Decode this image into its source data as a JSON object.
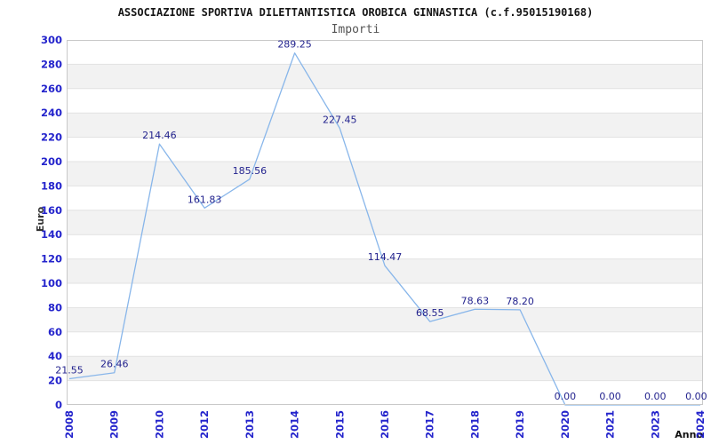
{
  "chart_data": {
    "type": "line",
    "title": "ASSOCIAZIONE SPORTIVA DILETTANTISTICA OROBICA GINNASTICA (c.f.95015190168)",
    "subtitle": "Importi",
    "xlabel": "Anno",
    "ylabel": "Euro",
    "categories": [
      "2008",
      "2009",
      "2010",
      "2012",
      "2013",
      "2014",
      "2015",
      "2016",
      "2017",
      "2018",
      "2019",
      "2020",
      "2021",
      "2023",
      "2024"
    ],
    "series": [
      {
        "name": "Importi",
        "values": [
          21.55,
          26.46,
          214.46,
          161.83,
          185.56,
          289.25,
          227.45,
          114.47,
          68.55,
          78.63,
          78.2,
          0.0,
          0.0,
          0.0,
          0.0
        ],
        "point_labels": [
          "21.55",
          "26.46",
          "214.46",
          "161.83",
          "185.56",
          "289.25",
          "227.45",
          "114.47",
          "68.55",
          "78.63",
          "78.20",
          "0.00",
          "0.00",
          "0.00",
          "0.00"
        ]
      }
    ],
    "ylim": [
      0,
      300
    ],
    "ytick_step": 20,
    "legend": "none",
    "grid": "horizontal gridlines with alternating shaded bands",
    "colors": {
      "line": "#88b6ea",
      "tick_text": "#2424cc",
      "point_label_text": "#23238e",
      "band_fill": "#f2f2f2",
      "gridline": "#e2e2e2",
      "plot_border": "#c9c9c9",
      "title_text": "#161616",
      "subtitle_text": "#555555",
      "axis_title_text": "#333333",
      "background": "#ffffff"
    }
  }
}
